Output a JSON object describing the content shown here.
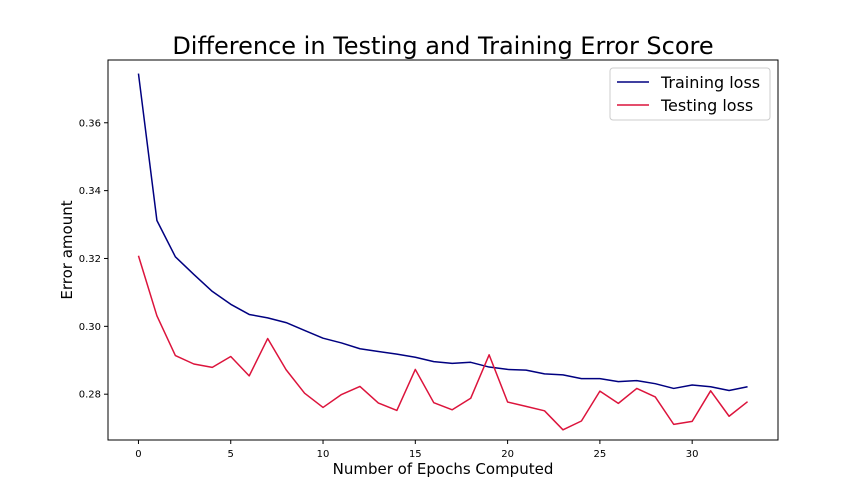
{
  "chart_data": {
    "type": "line",
    "title": "Difference in Testing and Training Error Score",
    "xlabel": "Number of Epochs Computed",
    "ylabel": "Error amount",
    "xlim": [
      -1.65,
      34.65
    ],
    "ylim": [
      0.2665,
      0.3785
    ],
    "xticks": [
      0,
      5,
      10,
      15,
      20,
      25,
      30
    ],
    "yticks": [
      0.28,
      0.3,
      0.32,
      0.34,
      0.36
    ],
    "ytick_labels": [
      "0.28",
      "0.30",
      "0.32",
      "0.34",
      "0.36"
    ],
    "grid": false,
    "legend_position": "top-right",
    "x": [
      0,
      1,
      2,
      3,
      4,
      5,
      6,
      7,
      8,
      9,
      10,
      11,
      12,
      13,
      14,
      15,
      16,
      17,
      18,
      19,
      20,
      21,
      22,
      23,
      24,
      25,
      26,
      27,
      28,
      29,
      30,
      31,
      32,
      33
    ],
    "series": [
      {
        "name": "Training loss",
        "color": "#000080",
        "values": [
          0.3745,
          0.3312,
          0.3205,
          0.3153,
          0.3103,
          0.3065,
          0.3035,
          0.3025,
          0.3011,
          0.2988,
          0.2965,
          0.2951,
          0.2934,
          0.2926,
          0.2918,
          0.2909,
          0.2896,
          0.2891,
          0.2894,
          0.288,
          0.2873,
          0.2871,
          0.286,
          0.2857,
          0.2846,
          0.2846,
          0.2837,
          0.284,
          0.2831,
          0.2817,
          0.2827,
          0.2822,
          0.2811,
          0.2822
        ]
      },
      {
        "name": "Testing loss",
        "color": "#dc143c",
        "values": [
          0.3208,
          0.3031,
          0.2914,
          0.2889,
          0.2879,
          0.2911,
          0.2854,
          0.2964,
          0.2872,
          0.2803,
          0.2761,
          0.2799,
          0.2823,
          0.2774,
          0.2752,
          0.2873,
          0.2775,
          0.2754,
          0.2788,
          0.2916,
          0.2777,
          0.2764,
          0.2751,
          0.2695,
          0.2721,
          0.2809,
          0.2773,
          0.2817,
          0.2792,
          0.2711,
          0.272,
          0.281,
          0.2735,
          0.2778
        ]
      }
    ]
  }
}
